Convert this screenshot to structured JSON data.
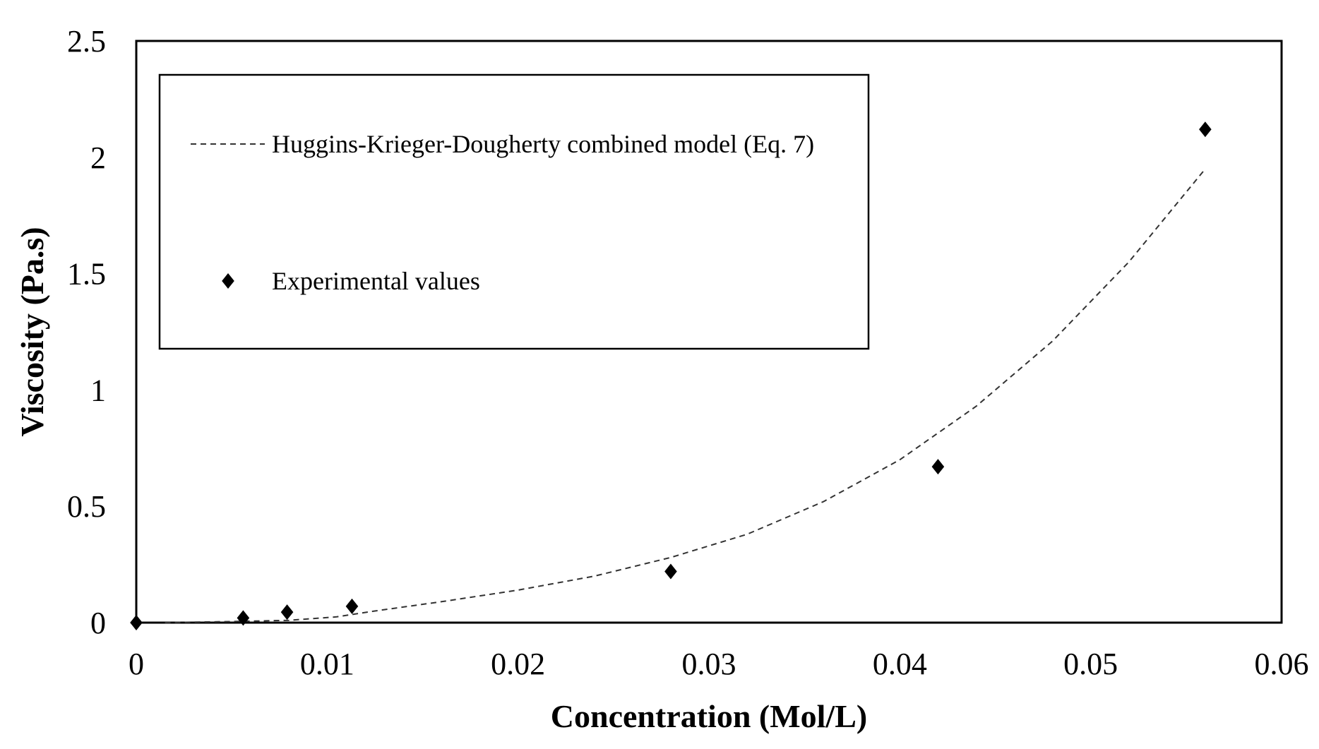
{
  "chart_data": {
    "type": "scatter",
    "title": "",
    "xlabel": "Concentration  (Mol/L)",
    "ylabel": "Viscosity (Pa.s)",
    "xlim": [
      0,
      0.06
    ],
    "ylim": [
      0,
      2.5
    ],
    "x_ticks": [
      0,
      0.01,
      0.02,
      0.03,
      0.04,
      0.05,
      0.06
    ],
    "x_tick_labels": [
      "0",
      "0.01",
      "0.02",
      "0.03",
      "0.04",
      "0.05",
      "0.06"
    ],
    "y_ticks": [
      0,
      0.5,
      1,
      1.5,
      2,
      2.5
    ],
    "y_tick_labels": [
      "0",
      "0.5",
      "1",
      "1.5",
      "2",
      "2.5"
    ],
    "grid": false,
    "legend_position": "top-left",
    "series": [
      {
        "name": "Huggins-Krieger-Dougherty combined model (Eq. 7)",
        "kind": "line",
        "style": "dashed",
        "color": "#333333",
        "x": [
          0.0015,
          0.005,
          0.008,
          0.0105,
          0.0125,
          0.016,
          0.02,
          0.024,
          0.028,
          0.032,
          0.036,
          0.04,
          0.044,
          0.048,
          0.052,
          0.056
        ],
        "y": [
          0.0,
          0.005,
          0.01,
          0.025,
          0.05,
          0.09,
          0.14,
          0.2,
          0.28,
          0.38,
          0.52,
          0.7,
          0.93,
          1.21,
          1.55,
          1.95
        ]
      },
      {
        "name": "Experimental values",
        "kind": "scatter",
        "marker": "diamond",
        "color": "#000000",
        "x": [
          0.0,
          0.0056,
          0.0079,
          0.0113,
          0.028,
          0.042,
          0.056
        ],
        "y": [
          0.0,
          0.02,
          0.045,
          0.07,
          0.22,
          0.67,
          2.12
        ]
      }
    ]
  }
}
